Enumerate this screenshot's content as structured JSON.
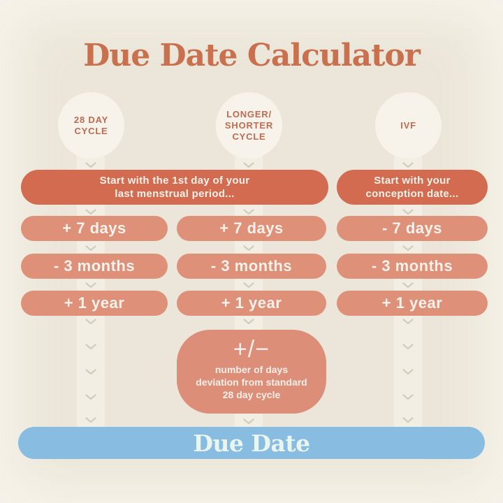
{
  "title": "Due Date Calculator",
  "columns": [
    {
      "id": "28-day-cycle",
      "header_lines": [
        "28 DAY",
        "CYCLE"
      ],
      "start_lines": [
        "Start with the 1st day of your",
        "last menstrual period..."
      ],
      "steps": [
        "+ 7 days",
        "- 3 months",
        "+ 1 year"
      ]
    },
    {
      "id": "longer-shorter-cycle",
      "header_lines": [
        "LONGER/",
        "SHORTER",
        "CYCLE"
      ],
      "steps": [
        "+ 7 days",
        "- 3 months",
        "+ 1 year"
      ],
      "adjustment": {
        "symbol": "+/−",
        "desc_lines": [
          "number of days",
          "deviation from standard",
          "28 day cycle"
        ]
      }
    },
    {
      "id": "ivf",
      "header_lines": [
        "IVF"
      ],
      "start_lines": [
        "Start with your",
        "conception date..."
      ],
      "steps": [
        "- 7 days",
        "- 3 months",
        "+ 1 year"
      ]
    }
  ],
  "result_label": "Due Date",
  "icons": {
    "chevron_down": "chevron-down"
  },
  "colors": {
    "background": "#EBE6D9",
    "track": "#F2EEE3",
    "circle": "#F7F3EA",
    "title_text": "#C9714E",
    "header_text": "#BF6B52",
    "start_pill": "#D26B50",
    "step_pill": "#DE9078",
    "adjust_box": "#DC8E78",
    "due_bar": "#88BDE1",
    "chevron": "#D3CDC0"
  }
}
